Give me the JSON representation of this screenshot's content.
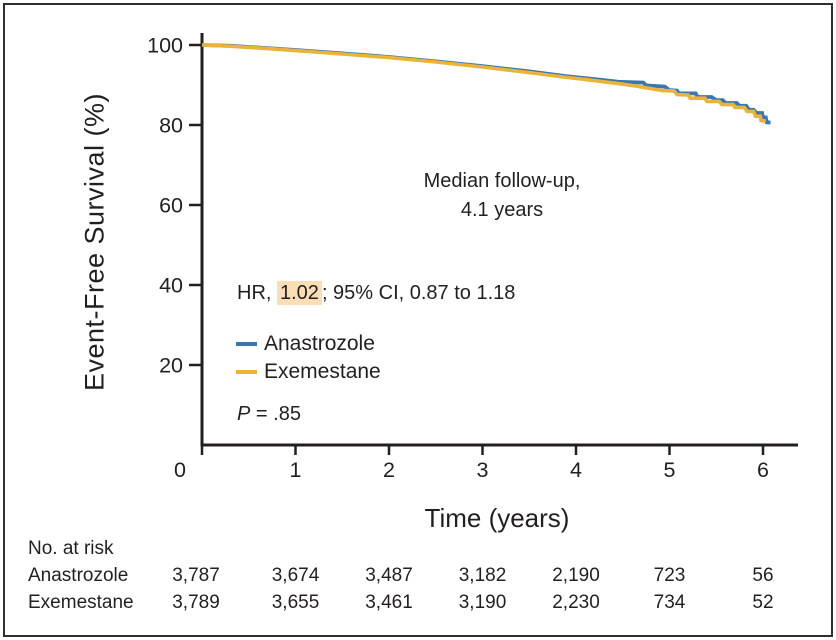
{
  "figure": {
    "background": "#ffffff",
    "border_color": "#2f2f2f",
    "text_color": "#231f20"
  },
  "chart_data": {
    "type": "line",
    "subtype": "kaplan-meier-survival",
    "title": "",
    "xlabel": "Time (years)",
    "ylabel": "Event-Free Survival (%)",
    "xlim": [
      0,
      6.4
    ],
    "ylim": [
      0,
      100
    ],
    "x_ticks": [
      "0",
      "1",
      "2",
      "3",
      "4",
      "5",
      "6"
    ],
    "y_ticks": [
      "20",
      "40",
      "60",
      "80",
      "100"
    ],
    "grid": false,
    "legend_position": "inside-left",
    "axis_color": "#231f20",
    "series": [
      {
        "name": "Anastrozole",
        "color": "#3b76ac",
        "points": [
          [
            0,
            100
          ],
          [
            0.3,
            99.8
          ],
          [
            0.7,
            99.2
          ],
          [
            1,
            98.75
          ],
          [
            1.5,
            97.9
          ],
          [
            2,
            97.0
          ],
          [
            2.5,
            95.9
          ],
          [
            3,
            94.7
          ],
          [
            3.5,
            93.4
          ],
          [
            3.9,
            92.2
          ],
          [
            4.1,
            91.7
          ],
          [
            4.3,
            91.2
          ],
          [
            4.45,
            90.8
          ],
          [
            4.72,
            90.6
          ],
          [
            4.75,
            89.9
          ],
          [
            4.95,
            89.6
          ],
          [
            5.0,
            88.7
          ],
          [
            5.08,
            88.6
          ],
          [
            5.1,
            87.9
          ],
          [
            5.28,
            87.9
          ],
          [
            5.3,
            87.0
          ],
          [
            5.45,
            87.0
          ],
          [
            5.5,
            86.2
          ],
          [
            5.57,
            86.2
          ],
          [
            5.6,
            85.5
          ],
          [
            5.72,
            85.5
          ],
          [
            5.75,
            84.8
          ],
          [
            5.82,
            84.8
          ],
          [
            5.85,
            83.8
          ],
          [
            5.9,
            83.8
          ],
          [
            5.93,
            83.0
          ],
          [
            5.99,
            83.0
          ],
          [
            6.0,
            81.9
          ],
          [
            6.03,
            81.9
          ],
          [
            6.04,
            80.7
          ],
          [
            6.08,
            80.6
          ]
        ]
      },
      {
        "name": "Exemestane",
        "color": "#eab43a",
        "points": [
          [
            0,
            100
          ],
          [
            0.3,
            99.7
          ],
          [
            0.7,
            99.1
          ],
          [
            1,
            98.6
          ],
          [
            1.5,
            97.75
          ],
          [
            2,
            96.85
          ],
          [
            2.5,
            95.75
          ],
          [
            3,
            94.5
          ],
          [
            3.5,
            93.1
          ],
          [
            3.9,
            91.9
          ],
          [
            4.1,
            91.4
          ],
          [
            4.3,
            90.8
          ],
          [
            4.5,
            90.2
          ],
          [
            4.65,
            89.7
          ],
          [
            4.8,
            89.1
          ],
          [
            4.93,
            88.6
          ],
          [
            5.05,
            88.5
          ],
          [
            5.08,
            87.6
          ],
          [
            5.2,
            87.5
          ],
          [
            5.22,
            86.7
          ],
          [
            5.38,
            86.7
          ],
          [
            5.4,
            85.9
          ],
          [
            5.53,
            85.9
          ],
          [
            5.56,
            85.1
          ],
          [
            5.68,
            85.1
          ],
          [
            5.7,
            84.4
          ],
          [
            5.8,
            84.4
          ],
          [
            5.83,
            83.4
          ],
          [
            5.9,
            83.4
          ],
          [
            5.92,
            82.2
          ],
          [
            5.97,
            82.2
          ],
          [
            5.98,
            81.1
          ],
          [
            6.03,
            81.0
          ]
        ]
      }
    ],
    "annotations": {
      "median_line1": "Median follow-up,",
      "median_line2": "4.1 years",
      "hr_prefix": "HR, ",
      "hr_value": "1.02",
      "hr_suffix": "; 95% CI, 0.87 to 1.18",
      "p_label": "P",
      "p_value": " = .85",
      "highlight_color": "#fbdeb6"
    }
  },
  "risk_table": {
    "title": "No. at risk",
    "rows": [
      {
        "label": "Anastrozole",
        "counts": [
          "3,787",
          "3,674",
          "3,487",
          "3,182",
          "2,190",
          "723",
          "56"
        ]
      },
      {
        "label": "Exemestane",
        "counts": [
          "3,789",
          "3,655",
          "3,461",
          "3,190",
          "2,230",
          "734",
          "52"
        ]
      }
    ]
  }
}
